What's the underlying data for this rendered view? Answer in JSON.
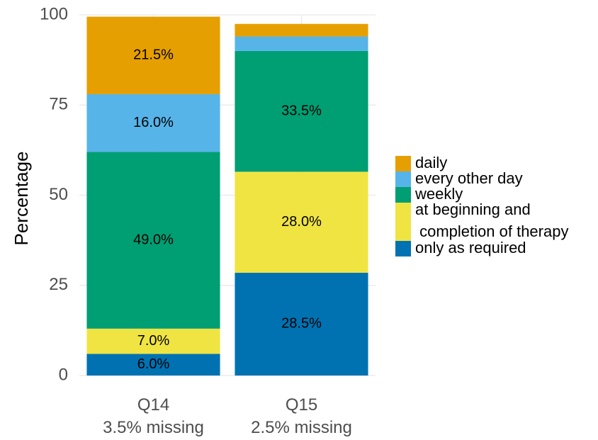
{
  "chart_data": {
    "type": "stacked_bar",
    "y_label": "Percentage",
    "categories": [
      "Q14\n3.5% missing",
      "Q15\n2.5% missing"
    ],
    "series": [
      {
        "name": "only as required",
        "color": "#0072B2",
        "values": [
          6.0,
          28.5
        ],
        "value_labels": [
          "6.0%",
          "28.5%"
        ]
      },
      {
        "name": "at beginning and\n completion of therapy",
        "color": "#F0E442",
        "values": [
          7.0,
          28.0
        ],
        "value_labels": [
          "7.0%",
          "28.0%"
        ]
      },
      {
        "name": "weekly",
        "color": "#009E73",
        "values": [
          49.0,
          33.5
        ],
        "value_labels": [
          "49.0%",
          "33.5%"
        ]
      },
      {
        "name": "every other day",
        "color": "#56B4E9",
        "values": [
          16.0,
          4.0
        ],
        "value_labels": [
          "16.0%",
          null
        ]
      },
      {
        "name": "daily",
        "color": "#E69F00",
        "values": [
          21.5,
          3.5
        ],
        "value_labels": [
          "21.5%",
          null
        ]
      }
    ],
    "ylim": [
      0,
      100
    ],
    "yticks": [
      0,
      25,
      50,
      75,
      100
    ],
    "grid": true,
    "legend": "right"
  }
}
